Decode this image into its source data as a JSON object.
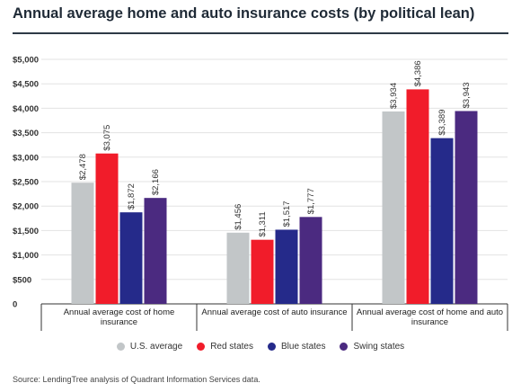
{
  "title": "Annual average home and auto insurance costs (by political lean)",
  "source": "Source: LendingTree analysis of Quadrant Information Services data.",
  "chart_data": {
    "type": "bar",
    "categories": [
      "Annual average cost of home insurance",
      "Annual average cost of auto insurance",
      "Annual average cost of home and auto insurance"
    ],
    "category_lines": [
      [
        "Annual average cost of home",
        "insurance"
      ],
      [
        "Annual average cost of auto insurance"
      ],
      [
        "Annual average cost of home and auto",
        "insurance"
      ]
    ],
    "series": [
      {
        "name": "U.S. average",
        "color": "#c2c6c8",
        "values": [
          2478,
          1456,
          3934
        ],
        "labels": [
          "$2,478",
          "$1,456",
          "$3,934"
        ]
      },
      {
        "name": "Red states",
        "color": "#f11c2a",
        "values": [
          3075,
          1311,
          4386
        ],
        "labels": [
          "$3,075",
          "$1,311",
          "$4,386"
        ]
      },
      {
        "name": "Blue states",
        "color": "#252a8a",
        "values": [
          1872,
          1517,
          3389
        ],
        "labels": [
          "$1,872",
          "$1,517",
          "$3,389"
        ]
      },
      {
        "name": "Swing states",
        "color": "#4b2a80",
        "values": [
          2166,
          1777,
          3943
        ],
        "labels": [
          "$2,166",
          "$1,777",
          "$3,943"
        ]
      }
    ],
    "yticks": [
      0,
      500,
      1000,
      1500,
      2000,
      2500,
      3000,
      3500,
      4000,
      4500,
      5000
    ],
    "ytick_labels": [
      "0",
      "$500",
      "$1,000",
      "$1,500",
      "$2,000",
      "$2,500",
      "$3,000",
      "$3,500",
      "$4,000",
      "$4,500",
      "$5,000"
    ],
    "ylim": [
      0,
      5000
    ],
    "grid": true,
    "legend_position": "bottom"
  }
}
